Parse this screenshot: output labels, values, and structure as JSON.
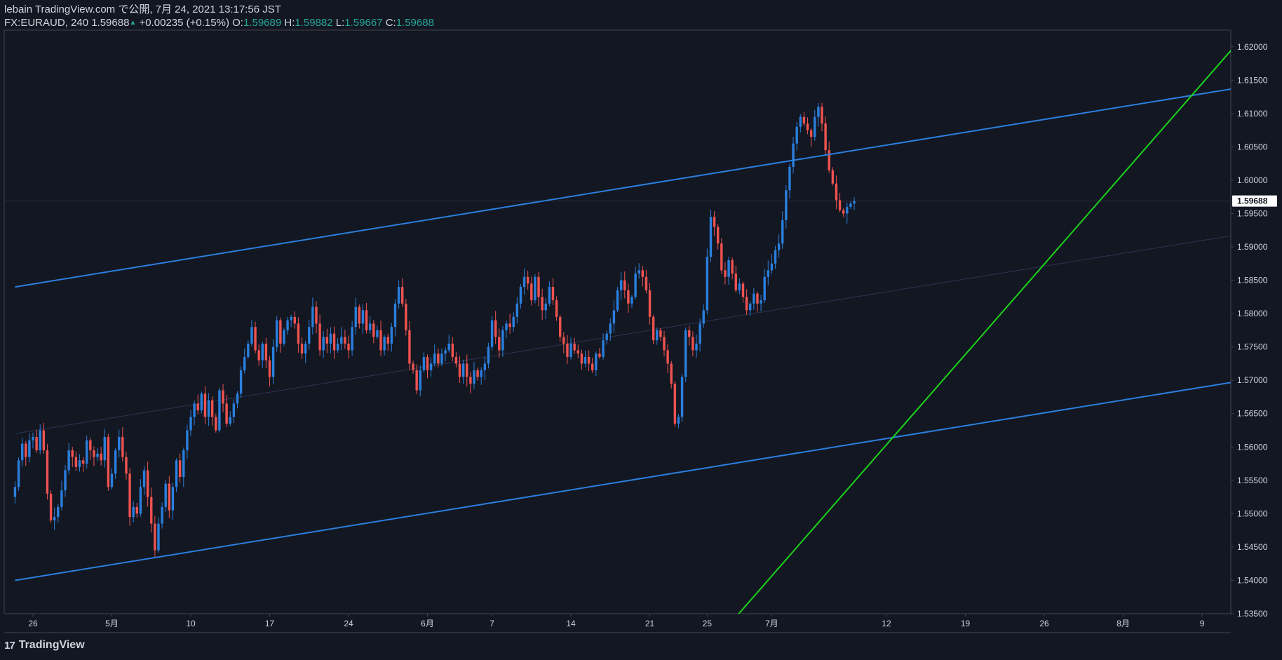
{
  "header": {
    "publisher": "lebain TradingView.com で公開, 7月 24, 2021 13:17:56 JST",
    "symbol_line": "FX:EURAUD, 240 1.59688",
    "change": "+0.00235 (+0.15%)",
    "o_label": "O:",
    "o_value": "1.59689",
    "h_label": "H:",
    "h_value": "1.59882",
    "l_label": "L:",
    "l_value": "1.59667",
    "c_label": "C:",
    "c_value": "1.59688"
  },
  "footer": {
    "logo_text": "TradingView",
    "logo_mark": "17"
  },
  "colors": {
    "background": "#131722",
    "up": "#2a7fde",
    "down": "#ef5350",
    "channel": "#2a7fde",
    "trendline": "#1bd41b",
    "axis_text": "#d1d4dc",
    "price_label_bg": "#ffffff"
  },
  "chart_data": {
    "type": "candlestick",
    "symbol": "FX:EURAUD",
    "interval": "240",
    "ylim": [
      1.535,
      1.6225
    ],
    "last_price": "1.59688",
    "y_ticks": [
      "1.62000",
      "1.61500",
      "1.61000",
      "1.60500",
      "1.60000",
      "1.59500",
      "1.59000",
      "1.58500",
      "1.58000",
      "1.57500",
      "1.57000",
      "1.56500",
      "1.56000",
      "1.55500",
      "1.55000",
      "1.54500",
      "1.54000",
      "1.53500"
    ],
    "x_ticks": [
      {
        "label": "26",
        "bar": 5
      },
      {
        "label": "5月",
        "bar": 27
      },
      {
        "label": "10",
        "bar": 49
      },
      {
        "label": "17",
        "bar": 71
      },
      {
        "label": "24",
        "bar": 93
      },
      {
        "label": "6月",
        "bar": 115
      },
      {
        "label": "7",
        "bar": 133
      },
      {
        "label": "14",
        "bar": 155
      },
      {
        "label": "21",
        "bar": 177
      },
      {
        "label": "25",
        "bar": 193
      },
      {
        "label": "7月",
        "bar": 211
      },
      {
        "label": "12",
        "bar": 243
      },
      {
        "label": "19",
        "bar": 265
      },
      {
        "label": "26",
        "bar": 287
      },
      {
        "label": "8月",
        "bar": 309
      },
      {
        "label": "9",
        "bar": 331
      }
    ],
    "closes": [
      1.554,
      1.558,
      1.5605,
      1.5585,
      1.561,
      1.5615,
      1.5595,
      1.5625,
      1.5595,
      1.553,
      1.549,
      1.5495,
      1.551,
      1.5535,
      1.5565,
      1.5595,
      1.5585,
      1.557,
      1.558,
      1.5575,
      1.561,
      1.5595,
      1.5585,
      1.559,
      1.558,
      1.5615,
      1.554,
      1.556,
      1.5595,
      1.5615,
      1.5585,
      1.556,
      1.5495,
      1.551,
      1.55,
      1.554,
      1.5565,
      1.5525,
      1.5485,
      1.5445,
      1.5485,
      1.551,
      1.5545,
      1.5505,
      1.554,
      1.558,
      1.5555,
      1.5595,
      1.5625,
      1.5645,
      1.5665,
      1.5655,
      1.568,
      1.5645,
      1.567,
      1.5645,
      1.5625,
      1.5685,
      1.5665,
      1.5635,
      1.5645,
      1.5665,
      1.568,
      1.5715,
      1.5735,
      1.5755,
      1.578,
      1.5745,
      1.573,
      1.5755,
      1.573,
      1.5705,
      1.575,
      1.579,
      1.5755,
      1.5775,
      1.579,
      1.5795,
      1.5785,
      1.5755,
      1.574,
      1.5755,
      1.578,
      1.581,
      1.5785,
      1.5745,
      1.5765,
      1.5755,
      1.577,
      1.5745,
      1.5755,
      1.5765,
      1.5755,
      1.5745,
      1.578,
      1.581,
      1.5785,
      1.5805,
      1.5775,
      1.5785,
      1.5765,
      1.5775,
      1.5745,
      1.5765,
      1.5755,
      1.578,
      1.5815,
      1.584,
      1.5815,
      1.5775,
      1.5725,
      1.5715,
      1.5685,
      1.5715,
      1.5735,
      1.5715,
      1.5725,
      1.574,
      1.5725,
      1.574,
      1.5745,
      1.5755,
      1.5735,
      1.5725,
      1.5705,
      1.5725,
      1.5705,
      1.5695,
      1.5715,
      1.5705,
      1.5715,
      1.5725,
      1.575,
      1.579,
      1.5765,
      1.5745,
      1.5775,
      1.5785,
      1.578,
      1.5795,
      1.5815,
      1.584,
      1.5855,
      1.5845,
      1.582,
      1.5855,
      1.5825,
      1.5805,
      1.5815,
      1.584,
      1.582,
      1.5795,
      1.5765,
      1.5755,
      1.5735,
      1.5755,
      1.5745,
      1.574,
      1.5725,
      1.5735,
      1.5725,
      1.5715,
      1.574,
      1.5735,
      1.576,
      1.577,
      1.5785,
      1.5805,
      1.5835,
      1.585,
      1.5835,
      1.5815,
      1.5825,
      1.586,
      1.5865,
      1.5855,
      1.5835,
      1.5795,
      1.576,
      1.5775,
      1.5765,
      1.5745,
      1.5725,
      1.5695,
      1.5635,
      1.5645,
      1.5705,
      1.5775,
      1.5765,
      1.5745,
      1.5755,
      1.5785,
      1.5805,
      1.5885,
      1.5945,
      1.593,
      1.5905,
      1.5865,
      1.5855,
      1.588,
      1.586,
      1.5835,
      1.5845,
      1.5825,
      1.5805,
      1.5815,
      1.583,
      1.5815,
      1.582,
      1.5855,
      1.5865,
      1.5875,
      1.5895,
      1.5905,
      1.594,
      1.5985,
      1.602,
      1.6055,
      1.608,
      1.6095,
      1.6085,
      1.6075,
      1.6065,
      1.6095,
      1.611,
      1.6085,
      1.6045,
      1.6015,
      1.5995,
      1.597,
      1.5955,
      1.595,
      1.596,
      1.5965,
      1.59688
    ],
    "channel_upper": [
      [
        0,
        1.584
      ],
      [
        360,
        1.6155
      ]
    ],
    "channel_lower": [
      [
        0,
        1.54
      ],
      [
        360,
        1.5715
      ]
    ],
    "channel_mid": [
      [
        0,
        1.562
      ],
      [
        360,
        1.5935
      ]
    ],
    "trendline": [
      [
        201,
        1.5345
      ],
      [
        344,
        1.6225
      ]
    ]
  }
}
